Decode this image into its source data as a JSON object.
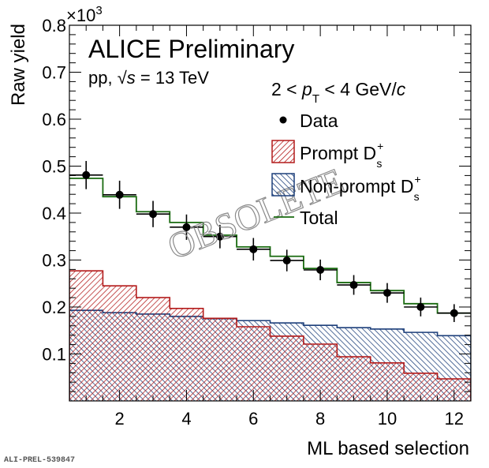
{
  "chart_data": {
    "type": "bar",
    "subtype": "step-histogram-with-data-points",
    "title": "ALICE Preliminary",
    "subtitle": "pp, √s = 13 TeV",
    "annotation_kinematics": "2 < pT < 4 GeV/c",
    "xlabel": "ML based selection",
    "ylabel": "Raw yield",
    "y_exponent_label": "×10³",
    "xlim": [
      0.5,
      12.5
    ],
    "ylim": [
      0,
      0.8
    ],
    "y_scale_factor": 1000,
    "x_ticks": [
      2,
      4,
      6,
      8,
      10,
      12
    ],
    "x_tick_labels": [
      "2",
      "4",
      "6",
      "8",
      "10",
      "12"
    ],
    "y_ticks": [
      0.1,
      0.2,
      0.3,
      0.4,
      0.5,
      0.6,
      0.7,
      0.8
    ],
    "y_tick_labels": [
      "0.1",
      "0.2",
      "0.3",
      "0.4",
      "0.5",
      "0.6",
      "0.7",
      "0.8"
    ],
    "grid": false,
    "legend_position": "top-right",
    "x": [
      1,
      2,
      3,
      4,
      5,
      6,
      7,
      8,
      9,
      10,
      11,
      12
    ],
    "series": [
      {
        "name": "Data",
        "kind": "points-with-errors",
        "color": "#000000",
        "values": [
          0.481,
          0.439,
          0.398,
          0.37,
          0.35,
          0.323,
          0.299,
          0.279,
          0.247,
          0.23,
          0.2,
          0.187
        ],
        "errors": [
          0.03,
          0.03,
          0.028,
          0.027,
          0.025,
          0.024,
          0.023,
          0.022,
          0.021,
          0.021,
          0.02,
          0.019
        ]
      },
      {
        "name": "Prompt D_s^+",
        "kind": "hatched-histogram",
        "color": "#b31b1b",
        "values": [
          0.277,
          0.245,
          0.22,
          0.197,
          0.176,
          0.158,
          0.138,
          0.121,
          0.094,
          0.081,
          0.059,
          0.047
        ]
      },
      {
        "name": "Non-prompt D_s^+",
        "kind": "hatched-histogram",
        "color": "#1c3f7a",
        "values": [
          0.193,
          0.188,
          0.185,
          0.18,
          0.175,
          0.171,
          0.166,
          0.161,
          0.156,
          0.153,
          0.146,
          0.139
        ]
      },
      {
        "name": "Total",
        "kind": "step-line",
        "color": "#1a6b10",
        "values": [
          0.474,
          0.435,
          0.403,
          0.38,
          0.353,
          0.328,
          0.308,
          0.282,
          0.252,
          0.235,
          0.207,
          0.187
        ]
      }
    ],
    "legend": [
      {
        "label": "Data",
        "symbol": "marker"
      },
      {
        "label": "Prompt D",
        "sup": "+",
        "sub": "s",
        "symbol": "red-hatch"
      },
      {
        "label": "Non-prompt D",
        "sup": "+",
        "sub": "s",
        "symbol": "blue-hatch"
      },
      {
        "label": "Total",
        "symbol": "green-line"
      }
    ],
    "watermark": "OBSOLETE"
  },
  "footer_id": "ALI-PREL-539847",
  "texts": {
    "title": "ALICE Preliminary",
    "energy_pre": "pp, ",
    "energy_sqrt": "√",
    "energy_s": "s",
    "energy_post": " = 13 TeV",
    "kin_pre": "2 < ",
    "kin_p": "p",
    "kin_sub": "T",
    "kin_mid": " < 4 GeV/",
    "kin_c": "c",
    "exp_base": "×10",
    "exp_pow": "3",
    "ylabel": "Raw yield",
    "xlabel": "ML based selection",
    "watermark": "OBSOLETE",
    "legend_data": "Data",
    "legend_prompt": "Prompt D",
    "legend_nonprompt": "Non-prompt D",
    "legend_total": "Total",
    "legend_sup": "+",
    "legend_sub": "s"
  }
}
